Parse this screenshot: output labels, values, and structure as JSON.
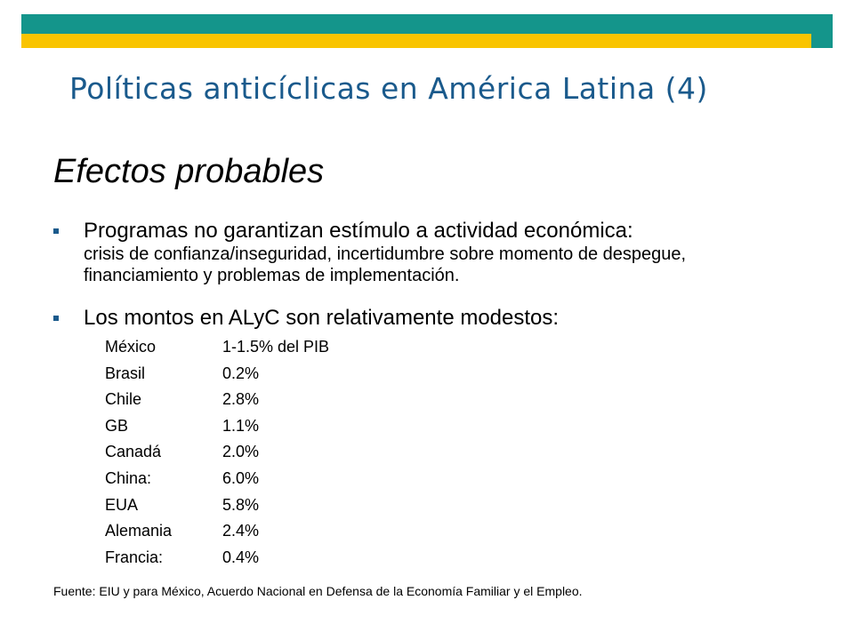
{
  "header": {
    "title": "Políticas anticíclicas en América Latina (4)",
    "colors": {
      "teal": "#14958b",
      "yellow": "#f9c400",
      "title_blue": "#1a5a8c"
    }
  },
  "subtitle": "Efectos probables",
  "bullets": [
    {
      "lead": "Programas no garantizan estímulo a actividad económica:",
      "rest": "crisis de confianza/inseguridad, incertidumbre sobre momento de despegue, financiamiento y problemas de implementación."
    },
    {
      "lead": "Los montos en ALyC son relativamente modestos:"
    }
  ],
  "rows": [
    {
      "country": "México",
      "value": "1-1.5% del PIB"
    },
    {
      "country": "Brasil",
      "value": "0.2%"
    },
    {
      "country": "Chile",
      "value": "2.8%"
    },
    {
      "country": "GB",
      "value": "1.1%"
    },
    {
      "country": "Canadá",
      "value": "2.0%"
    },
    {
      "country": "China:",
      "value": "6.0%"
    },
    {
      "country": "EUA",
      "value": "5.8%"
    },
    {
      "country": "Alemania",
      "value": "2.4%"
    },
    {
      "country": "Francia:",
      "value": "0.4%"
    }
  ],
  "source": "Fuente: EIU y para México, Acuerdo Nacional en Defensa de la Economía Familiar y el Empleo."
}
